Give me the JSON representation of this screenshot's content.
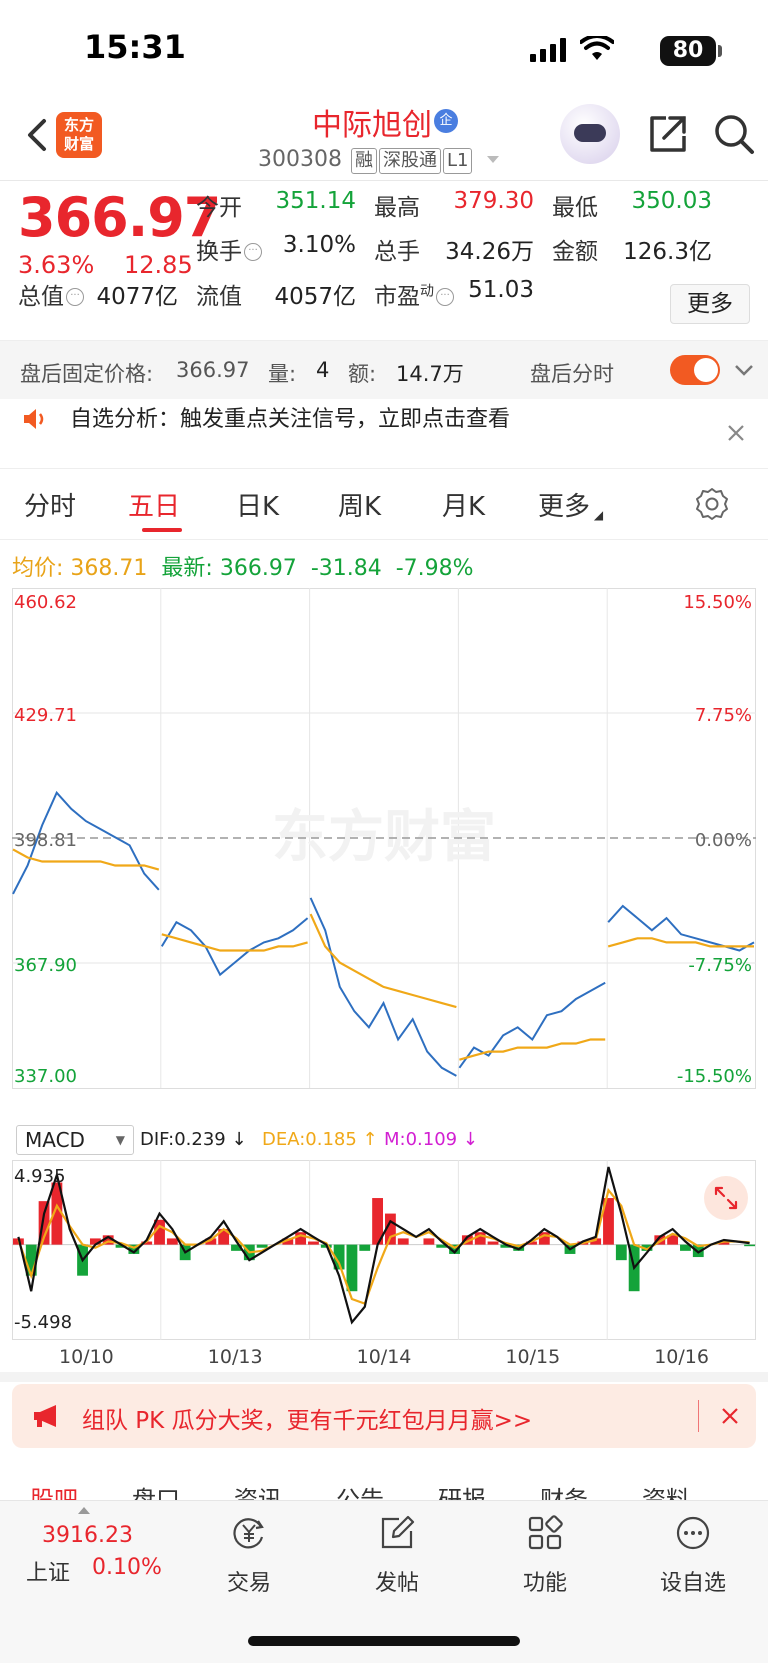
{
  "status_bar": {
    "time": "15:31",
    "battery": "80"
  },
  "header": {
    "logo": "东方\n财富",
    "stock_name": "中际旭创",
    "qi_tag": "企",
    "code": "300308",
    "badges": [
      "融",
      "深股通",
      "L1"
    ]
  },
  "quote": {
    "price": "366.97",
    "change_pct": "3.63%",
    "change": "12.85",
    "rows": [
      [
        {
          "label": "今开",
          "value": "351.14",
          "color": "green"
        },
        {
          "label": "最高",
          "value": "379.30",
          "color": "red"
        },
        {
          "label": "最低",
          "value": "350.03",
          "color": "green"
        }
      ],
      [
        {
          "label": "换手",
          "value": "3.10%",
          "color": "black"
        },
        {
          "label": "总手",
          "value": "34.26万",
          "color": "black"
        },
        {
          "label": "金额",
          "value": "126.3亿",
          "color": "black"
        }
      ]
    ],
    "row3": [
      {
        "label": "总值",
        "value": "4077亿"
      },
      {
        "label": "流值",
        "value": "4057亿"
      },
      {
        "label": "市盈",
        "sup": "动",
        "value": "51.03"
      }
    ],
    "more_label": "更多"
  },
  "after_hours": {
    "label": "盘后固定价格:",
    "price": "366.97",
    "vol_label": "量:",
    "vol": "4",
    "amt_label": "额:",
    "amt": "14.7万",
    "timeshare_label": "盘后分时"
  },
  "notice": {
    "text": "自选分析：触发重点关注信号，立即点击查看"
  },
  "tabs": [
    "分时",
    "五日",
    "日K",
    "周K",
    "月K",
    "更多"
  ],
  "active_tab": "五日",
  "avg_row": {
    "avg_label": "均价:",
    "avg": "368.71",
    "latest_label": "最新:",
    "latest": "366.97",
    "change": "-31.84",
    "change_pct": "-7.98%"
  },
  "watermark": "东方财富",
  "chart_data": {
    "type": "line",
    "title": "",
    "x": [
      "10/10",
      "10/13",
      "10/14",
      "10/15",
      "10/16"
    ],
    "y_ticks_left": [
      "460.62",
      "429.71",
      "398.81",
      "367.90",
      "337.00"
    ],
    "y_ticks_right": [
      "15.50%",
      "7.75%",
      "0.00%",
      "-7.75%",
      "-15.50%"
    ],
    "ylim": [
      337.0,
      460.62
    ],
    "baseline": 398.81,
    "series": [
      {
        "color": "#2e6fc0",
        "points_per_day": [
          [
            385,
            392,
            402,
            410,
            406,
            403,
            401,
            399,
            397,
            390,
            386
          ],
          [
            372,
            378,
            376,
            372,
            365,
            368,
            371,
            373,
            374,
            376,
            379
          ],
          [
            384,
            376,
            362,
            356,
            352,
            358,
            349,
            354,
            346,
            342,
            340
          ],
          [
            342,
            347,
            345,
            350,
            352,
            349,
            355,
            356,
            359,
            361,
            363
          ],
          [
            378,
            382,
            379,
            376,
            379,
            375,
            374,
            373,
            372,
            371,
            373
          ]
        ]
      },
      {
        "color": "#f0a818",
        "points_per_day": [
          [
            396,
            394,
            393,
            393,
            393,
            393,
            393,
            392,
            392,
            392,
            391
          ],
          [
            375,
            374,
            373,
            372,
            371,
            371,
            371,
            371,
            372,
            372,
            373
          ],
          [
            380,
            372,
            368,
            366,
            364,
            362,
            361,
            360,
            359,
            358,
            357
          ],
          [
            344,
            345,
            346,
            346,
            347,
            347,
            347,
            348,
            348,
            349,
            349
          ],
          [
            372,
            373,
            374,
            374,
            373,
            373,
            373,
            372,
            372,
            372,
            372
          ]
        ]
      }
    ]
  },
  "macd": {
    "selector": "MACD",
    "dif_label": "DIF:0.239 ↓",
    "dea_label": "DEA:0.185 ↑",
    "m_label": "M:0.109 ↓",
    "y_top": "4.935",
    "y_bottom": "-5.498",
    "ylim": [
      -5.498,
      4.935
    ],
    "dif": [
      0.5,
      -3,
      2,
      4.5,
      1,
      -1,
      0,
      0.5,
      0,
      -0.5,
      0.3,
      2,
      1,
      -0.5,
      0,
      0.5,
      1.5,
      0.2,
      -1,
      -0.5,
      0,
      0.5,
      1,
      0.5,
      0,
      -2,
      -5,
      -4,
      0,
      1.5,
      1,
      0.5,
      1,
      0.2,
      -0.5,
      0.5,
      1,
      0.5,
      0,
      -0.3,
      0.3,
      1,
      0.5,
      -0.3,
      0.2,
      0.5,
      5,
      2,
      -1.5,
      -0.5,
      0.5,
      1,
      0.2,
      -0.5,
      0,
      0.3,
      0.2,
      0.1
    ],
    "dea": [
      0.3,
      -2,
      0.5,
      2.5,
      1.2,
      0,
      -0.2,
      0.2,
      0.1,
      -0.2,
      0.2,
      1.2,
      0.8,
      0,
      0,
      0.3,
      1,
      0.4,
      -0.5,
      -0.4,
      0,
      0.3,
      0.6,
      0.4,
      0.1,
      -1.2,
      -3.5,
      -3.8,
      -1.5,
      0.5,
      0.8,
      0.5,
      0.8,
      0.3,
      -0.2,
      0.2,
      0.6,
      0.4,
      0.1,
      -0.1,
      0.2,
      0.6,
      0.5,
      0,
      0.1,
      0.3,
      3.5,
      2.5,
      0,
      -0.3,
      0.2,
      0.7,
      0.4,
      -0.1,
      0,
      0.2,
      0.2,
      0.15
    ],
    "macd_hist": [
      0.4,
      -2,
      2.8,
      4,
      0,
      -2,
      0.4,
      0.6,
      -0.2,
      -0.6,
      0.2,
      1.6,
      0.4,
      -1,
      0,
      0.4,
      1,
      -0.4,
      -1,
      -0.2,
      0,
      0.4,
      0.8,
      0.2,
      -0.2,
      -1.6,
      -3,
      -0.4,
      3,
      2,
      0.4,
      0,
      0.4,
      -0.2,
      -0.6,
      0.6,
      0.8,
      0.2,
      -0.2,
      -0.4,
      0.2,
      0.8,
      0,
      -0.6,
      0.2,
      0.4,
      3,
      -1,
      -3,
      -0.4,
      0.6,
      0.6,
      -0.4,
      -0.8,
      0,
      0.2,
      0,
      -0.1
    ]
  },
  "promo": {
    "text": "组队 PK 瓜分大奖，更有千元红包月月赢>>"
  },
  "subnav": [
    "股吧",
    "盘口",
    "资讯",
    "公告",
    "研报",
    "财务",
    "资料"
  ],
  "bottom_bar": {
    "index_value": "3916.23",
    "index_name": "上证",
    "index_pct": "0.10%",
    "items": [
      "交易",
      "发帖",
      "功能",
      "设自选"
    ]
  }
}
